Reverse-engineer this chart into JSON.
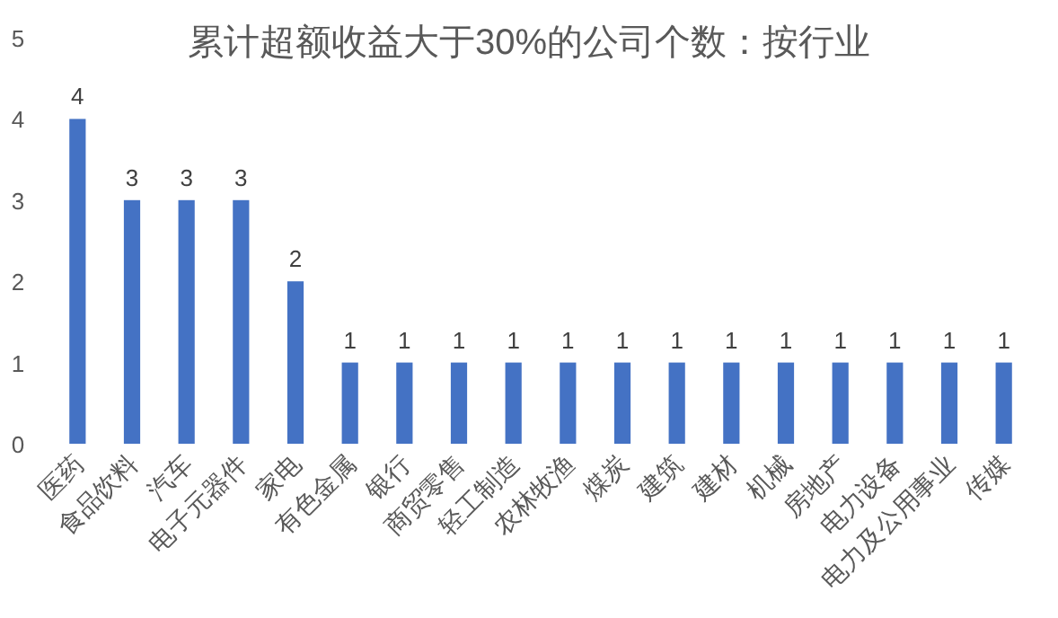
{
  "chart_data": {
    "type": "bar",
    "title": "累计超额收益大于30%的公司个数：按行业",
    "categories": [
      "医药",
      "食品饮料",
      "汽车",
      "电子元器件",
      "家电",
      "有色金属",
      "银行",
      "商贸零售",
      "轻工制造",
      "农林牧渔",
      "煤炭",
      "建筑",
      "建材",
      "机械",
      "房地产",
      "电力设备",
      "电力及公用事业",
      "传媒"
    ],
    "values": [
      4,
      3,
      3,
      3,
      2,
      1,
      1,
      1,
      1,
      1,
      1,
      1,
      1,
      1,
      1,
      1,
      1,
      1
    ],
    "color": "#4472c4",
    "ylim": [
      0,
      5
    ],
    "yticks": [
      0,
      1,
      2,
      3,
      4,
      5
    ],
    "data_labels": true
  }
}
